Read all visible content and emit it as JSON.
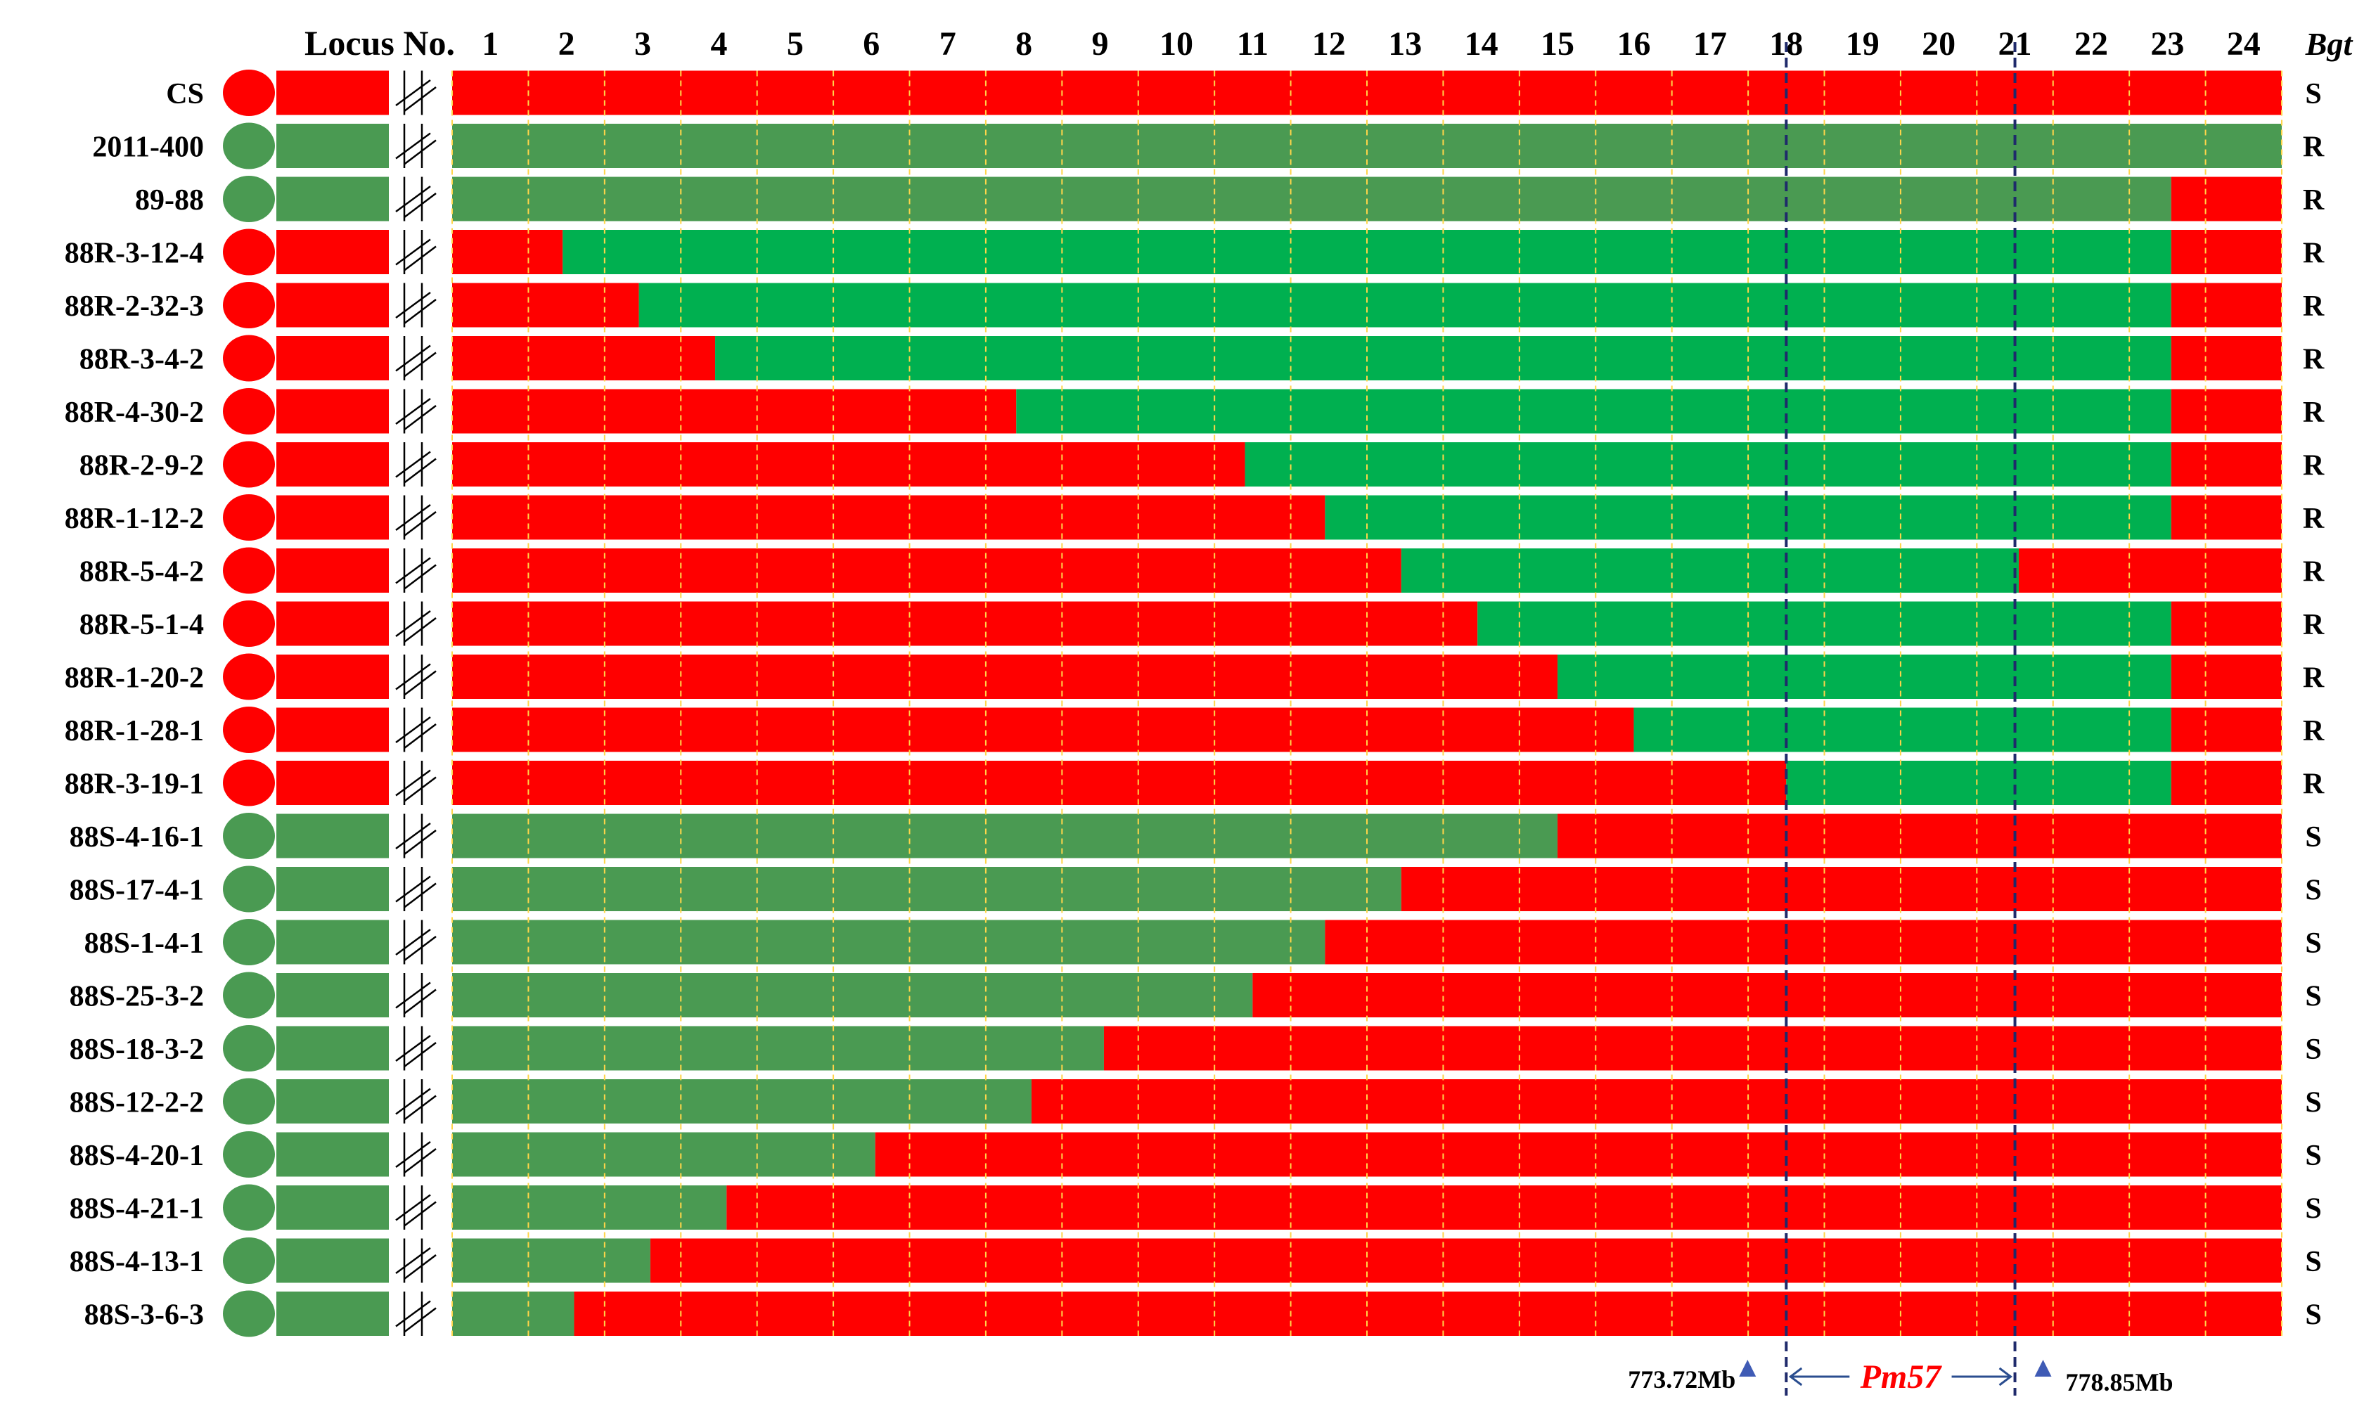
{
  "header": {
    "locus_label": "Locus No.",
    "loci": [
      "1",
      "2",
      "3",
      "4",
      "5",
      "6",
      "7",
      "8",
      "9",
      "10",
      "11",
      "12",
      "13",
      "14",
      "15",
      "16",
      "17",
      "18",
      "19",
      "20",
      "21",
      "22",
      "23",
      "24"
    ],
    "phenotype_label": "Bgt"
  },
  "colors": {
    "red": "#ff0000",
    "parent_green": "#4a9a52",
    "line_green": "#00b050",
    "locus_gridline": "#ffd54a",
    "interval_line": "#1f2a6b",
    "marker_triangle": "#3f5bb5",
    "gene_label": "#ff0000"
  },
  "lines": [
    {
      "name": "CS",
      "circle": "red",
      "pheno": "S",
      "segments": [
        {
          "to": 24,
          "color": "red"
        }
      ]
    },
    {
      "name": "2011-400",
      "circle": "parent_green",
      "pheno": "R",
      "segments": [
        {
          "to": 24,
          "color": "parent_green"
        }
      ]
    },
    {
      "name": "89-88",
      "circle": "parent_green",
      "pheno": "R",
      "segments": [
        {
          "to": 22.55,
          "color": "parent_green"
        },
        {
          "to": 24,
          "color": "red"
        }
      ]
    },
    {
      "name": "88R-3-12-4",
      "circle": "red",
      "pheno": "R",
      "segments": [
        {
          "to": 1.45,
          "color": "red"
        },
        {
          "to": 22.55,
          "color": "line_green"
        },
        {
          "to": 24,
          "color": "red"
        }
      ]
    },
    {
      "name": "88R-2-32-3",
      "circle": "red",
      "pheno": "R",
      "segments": [
        {
          "to": 2.45,
          "color": "red"
        },
        {
          "to": 22.55,
          "color": "line_green"
        },
        {
          "to": 24,
          "color": "red"
        }
      ]
    },
    {
      "name": "88R-3-4-2",
      "circle": "red",
      "pheno": "R",
      "segments": [
        {
          "to": 3.45,
          "color": "red"
        },
        {
          "to": 22.55,
          "color": "line_green"
        },
        {
          "to": 24,
          "color": "red"
        }
      ]
    },
    {
      "name": "88R-4-30-2",
      "circle": "red",
      "pheno": "R",
      "segments": [
        {
          "to": 7.4,
          "color": "red"
        },
        {
          "to": 22.55,
          "color": "line_green"
        },
        {
          "to": 24,
          "color": "red"
        }
      ]
    },
    {
      "name": "88R-2-9-2",
      "circle": "red",
      "pheno": "R",
      "segments": [
        {
          "to": 10.4,
          "color": "red"
        },
        {
          "to": 22.55,
          "color": "line_green"
        },
        {
          "to": 24,
          "color": "red"
        }
      ]
    },
    {
      "name": "88R-1-12-2",
      "circle": "red",
      "pheno": "R",
      "segments": [
        {
          "to": 11.45,
          "color": "red"
        },
        {
          "to": 22.55,
          "color": "line_green"
        },
        {
          "to": 24,
          "color": "red"
        }
      ]
    },
    {
      "name": "88R-5-4-2",
      "circle": "red",
      "pheno": "R",
      "segments": [
        {
          "to": 12.45,
          "color": "red"
        },
        {
          "to": 20.55,
          "color": "line_green"
        },
        {
          "to": 24,
          "color": "red"
        }
      ]
    },
    {
      "name": "88R-5-1-4",
      "circle": "red",
      "pheno": "R",
      "segments": [
        {
          "to": 13.45,
          "color": "red"
        },
        {
          "to": 22.55,
          "color": "line_green"
        },
        {
          "to": 24,
          "color": "red"
        }
      ]
    },
    {
      "name": "88R-1-20-2",
      "circle": "red",
      "pheno": "R",
      "segments": [
        {
          "to": 14.5,
          "color": "red"
        },
        {
          "to": 22.55,
          "color": "line_green"
        },
        {
          "to": 24,
          "color": "red"
        }
      ]
    },
    {
      "name": "88R-1-28-1",
      "circle": "red",
      "pheno": "R",
      "segments": [
        {
          "to": 15.5,
          "color": "red"
        },
        {
          "to": 22.55,
          "color": "line_green"
        },
        {
          "to": 24,
          "color": "red"
        }
      ]
    },
    {
      "name": "88R-3-19-1",
      "circle": "red",
      "pheno": "R",
      "segments": [
        {
          "to": 17.5,
          "color": "red"
        },
        {
          "to": 22.55,
          "color": "line_green"
        },
        {
          "to": 24,
          "color": "red"
        }
      ]
    },
    {
      "name": "88S-4-16-1",
      "circle": "parent_green",
      "pheno": "S",
      "segments": [
        {
          "to": 14.5,
          "color": "parent_green"
        },
        {
          "to": 24,
          "color": "red"
        }
      ]
    },
    {
      "name": "88S-17-4-1",
      "circle": "parent_green",
      "pheno": "S",
      "segments": [
        {
          "to": 12.45,
          "color": "parent_green"
        },
        {
          "to": 24,
          "color": "red"
        }
      ]
    },
    {
      "name": "88S-1-4-1",
      "circle": "parent_green",
      "pheno": "S",
      "segments": [
        {
          "to": 11.45,
          "color": "parent_green"
        },
        {
          "to": 24,
          "color": "red"
        }
      ]
    },
    {
      "name": "88S-25-3-2",
      "circle": "parent_green",
      "pheno": "S",
      "segments": [
        {
          "to": 10.5,
          "color": "parent_green"
        },
        {
          "to": 24,
          "color": "red"
        }
      ]
    },
    {
      "name": "88S-18-3-2",
      "circle": "parent_green",
      "pheno": "S",
      "segments": [
        {
          "to": 8.55,
          "color": "parent_green"
        },
        {
          "to": 24,
          "color": "red"
        }
      ]
    },
    {
      "name": "88S-12-2-2",
      "circle": "parent_green",
      "pheno": "S",
      "segments": [
        {
          "to": 7.6,
          "color": "parent_green"
        },
        {
          "to": 24,
          "color": "red"
        }
      ]
    },
    {
      "name": "88S-4-20-1",
      "circle": "parent_green",
      "pheno": "S",
      "segments": [
        {
          "to": 5.55,
          "color": "parent_green"
        },
        {
          "to": 24,
          "color": "red"
        }
      ]
    },
    {
      "name": "88S-4-21-1",
      "circle": "parent_green",
      "pheno": "S",
      "segments": [
        {
          "to": 3.6,
          "color": "parent_green"
        },
        {
          "to": 24,
          "color": "red"
        }
      ]
    },
    {
      "name": "88S-4-13-1",
      "circle": "parent_green",
      "pheno": "S",
      "segments": [
        {
          "to": 2.6,
          "color": "parent_green"
        },
        {
          "to": 24,
          "color": "red"
        }
      ]
    },
    {
      "name": "88S-3-6-3",
      "circle": "parent_green",
      "pheno": "S",
      "segments": [
        {
          "to": 1.6,
          "color": "parent_green"
        },
        {
          "to": 24,
          "color": "red"
        }
      ]
    }
  ],
  "interval": {
    "gene": "Pm57",
    "left_boundary_locus": 17.5,
    "right_boundary_locus": 20.5,
    "left_marker_label": "773.72Mb",
    "right_marker_label": "778.85Mb"
  }
}
